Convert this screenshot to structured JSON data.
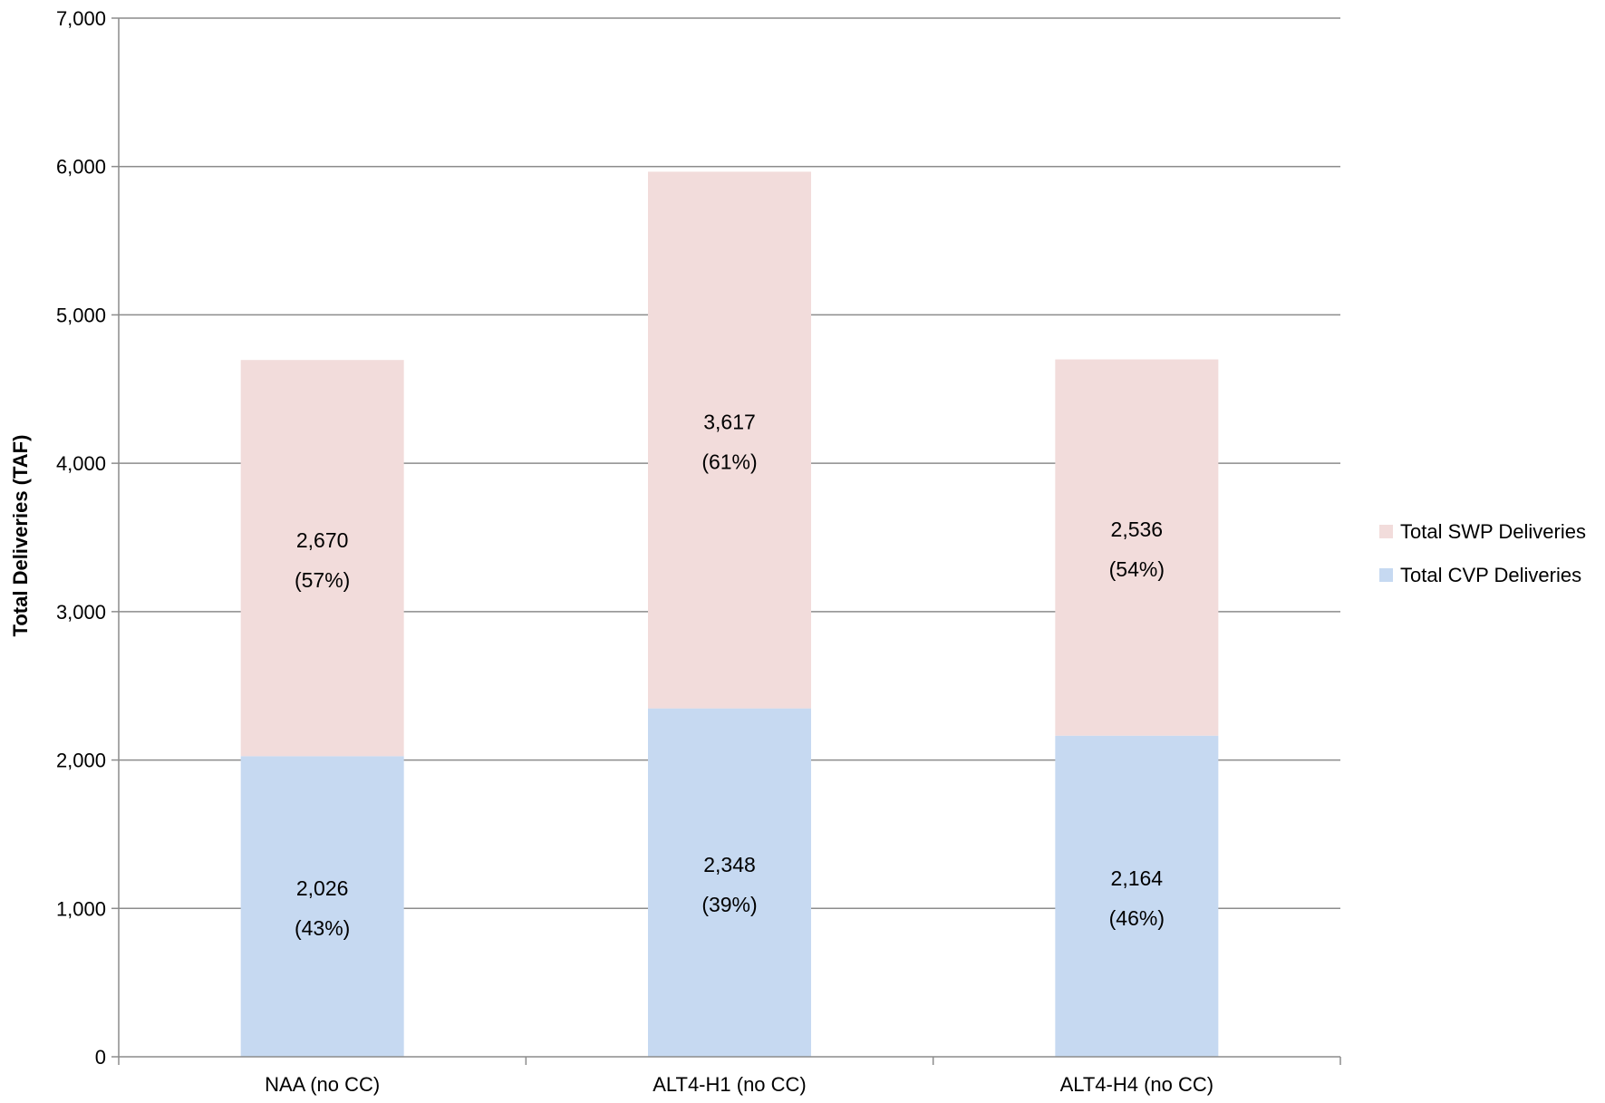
{
  "chart_data": {
    "type": "bar",
    "stacked": true,
    "title": "",
    "xlabel": "",
    "ylabel": "Total Deliveries (TAF)",
    "ylim": [
      0,
      7000
    ],
    "yticks": [
      0,
      1000,
      2000,
      3000,
      4000,
      5000,
      6000,
      7000
    ],
    "ytick_labels": [
      "0",
      "1,000",
      "2,000",
      "3,000",
      "4,000",
      "5,000",
      "6,000",
      "7,000"
    ],
    "grid": true,
    "legend_position": "right",
    "categories": [
      "NAA (no CC)",
      "ALT4-H1 (no CC)",
      "ALT4-H4 (no CC)"
    ],
    "series": [
      {
        "name": "Total CVP Deliveries",
        "color": "#c6d9f1",
        "values": [
          2026,
          2348,
          2164
        ],
        "labels": [
          "2,026",
          "2,348",
          "2,164"
        ],
        "percent_labels": [
          "(43%)",
          "(39%)",
          "(46%)"
        ]
      },
      {
        "name": "Total SWP Deliveries",
        "color": "#f2dcdb",
        "values": [
          2670,
          3617,
          2536
        ],
        "labels": [
          "2,670",
          "3,617",
          "2,536"
        ],
        "percent_labels": [
          "(57%)",
          "(61%)",
          "(54%)"
        ]
      }
    ],
    "legend_order": [
      "Total SWP Deliveries",
      "Total CVP Deliveries"
    ]
  }
}
